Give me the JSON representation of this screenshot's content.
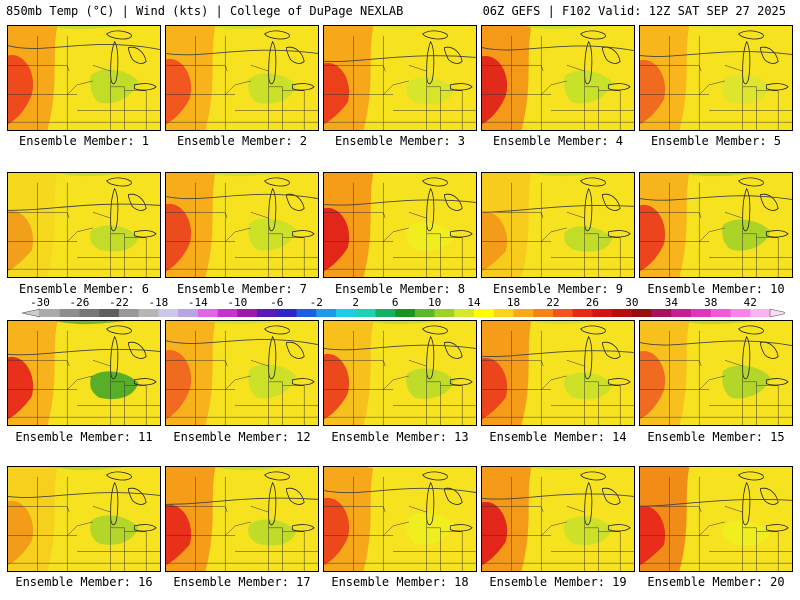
{
  "header": {
    "left": "850mb Temp (°C) | Wind (kts) | College of DuPage NEXLAB",
    "right": "06Z GEFS | F102 Valid: 12Z SAT SEP 27 2025"
  },
  "members": [
    {
      "label": "Ensemble Member: 1",
      "warm": "#ef4a1c",
      "mid": "#f7a81a",
      "cool": "#b9dc2a"
    },
    {
      "label": "Ensemble Member: 2",
      "warm": "#f0561e",
      "mid": "#f8b21c",
      "cool": "#c2df2c"
    },
    {
      "label": "Ensemble Member: 3",
      "warm": "#ec401b",
      "mid": "#f7a81a",
      "cool": "#d4e52e"
    },
    {
      "label": "Ensemble Member: 4",
      "warm": "#e22a1a",
      "mid": "#f49a18",
      "cool": "#bfe02c"
    },
    {
      "label": "Ensemble Member: 5",
      "warm": "#f06a20",
      "mid": "#f8b61c",
      "cool": "#d8e62f"
    },
    {
      "label": "Ensemble Member: 6",
      "warm": "#f2a01a",
      "mid": "#f6d81e",
      "cool": "#b8db2b"
    },
    {
      "label": "Ensemble Member: 7",
      "warm": "#ec4c1d",
      "mid": "#f7ac1a",
      "cool": "#c6e02c"
    },
    {
      "label": "Ensemble Member: 8",
      "warm": "#e2261a",
      "mid": "#f59c19",
      "cool": "#eef020"
    },
    {
      "label": "Ensemble Member: 9",
      "warm": "#f29c1a",
      "mid": "#f7cc1d",
      "cool": "#b9dc2a"
    },
    {
      "label": "Ensemble Member: 10",
      "warm": "#ec441c",
      "mid": "#f7b41c",
      "cool": "#9ed12a"
    },
    {
      "label": "Ensemble Member: 11",
      "warm": "#e8301a",
      "mid": "#f7b21c",
      "cool": "#3da42a"
    },
    {
      "label": "Ensemble Member: 12",
      "warm": "#f06a20",
      "mid": "#f7b21c",
      "cool": "#c6e02c"
    },
    {
      "label": "Ensemble Member: 13",
      "warm": "#ec481c",
      "mid": "#f7c01d",
      "cool": "#b6da2a"
    },
    {
      "label": "Ensemble Member: 14",
      "warm": "#ec441c",
      "mid": "#f59c19",
      "cool": "#c6e02c"
    },
    {
      "label": "Ensemble Member: 15",
      "warm": "#f06a20",
      "mid": "#f7c01d",
      "cool": "#a8d42a"
    },
    {
      "label": "Ensemble Member: 16",
      "warm": "#f29c1a",
      "mid": "#f7d01e",
      "cool": "#a8d42a"
    },
    {
      "label": "Ensemble Member: 17",
      "warm": "#e8301a",
      "mid": "#f59c19",
      "cool": "#b6da2a"
    },
    {
      "label": "Ensemble Member: 18",
      "warm": "#ec481c",
      "mid": "#f7a81a",
      "cool": "#eef020"
    },
    {
      "label": "Ensemble Member: 19",
      "warm": "#e2261a",
      "mid": "#f49a18",
      "cool": "#c6e02c"
    },
    {
      "label": "Ensemble Member: 20",
      "warm": "#e82e1a",
      "mid": "#f28c18",
      "cool": "#eef020"
    }
  ],
  "colorbar": {
    "labels": [
      "-30",
      "-26",
      "-22",
      "-18",
      "-14",
      "-10",
      "-6",
      "-2",
      "2",
      "6",
      "10",
      "14",
      "18",
      "22",
      "26",
      "30",
      "34",
      "38",
      "42"
    ],
    "colors": [
      "#aaaaaa",
      "#8e8e8e",
      "#777777",
      "#5e5e5e",
      "#999999",
      "#b6b6b6",
      "#c8c8e8",
      "#b9a4e4",
      "#e066e6",
      "#c632cc",
      "#9b1aa8",
      "#5a1ab8",
      "#2a28c8",
      "#1e5ee0",
      "#1e9ae8",
      "#1ecce8",
      "#1ed2b4",
      "#18b062",
      "#1a9420",
      "#5cb82a",
      "#9ed12a",
      "#d6ea2c",
      "#ffff00",
      "#ffd21e",
      "#f8aa1a",
      "#f48418",
      "#f0561e",
      "#e62a1a",
      "#d41414",
      "#b80e0e",
      "#961010",
      "#a8145c",
      "#c81e94",
      "#e034c0",
      "#f05ad8",
      "#f884e8",
      "#fcb4f0"
    ]
  }
}
